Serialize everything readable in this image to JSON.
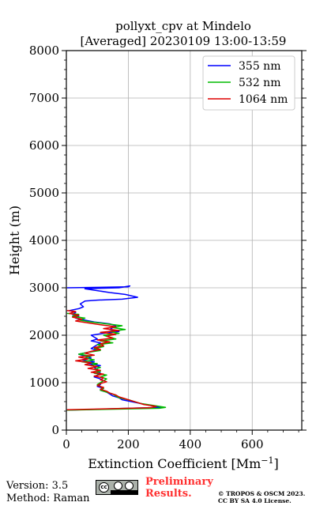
{
  "chart_data": {
    "type": "line",
    "title_line1": "pollyxt_cpv at Mindelo",
    "title_line2": "[Averaged] 20230109 13:00-13:59",
    "xlabel": "Extinction Coefficient [Mm",
    "xlabel_sup": "−1",
    "xlabel_end": "]",
    "ylabel": "Height (m)",
    "xlim": [
      0,
      760
    ],
    "ylim": [
      0,
      8000
    ],
    "xticks": [
      "0",
      "200",
      "400",
      "600"
    ],
    "yticks": [
      "0",
      "1000",
      "2000",
      "3000",
      "4000",
      "5000",
      "6000",
      "7000",
      "8000"
    ],
    "grid": true,
    "legend_position": "top-right",
    "series": [
      {
        "name": "355 nm",
        "color": "#0000ff",
        "points": [
          [
            2,
            3000
          ],
          [
            200,
            3020
          ],
          [
            205,
            3040
          ],
          [
            170,
            3000
          ],
          [
            60,
            2980
          ],
          [
            100,
            2940
          ],
          [
            140,
            2900
          ],
          [
            190,
            2860
          ],
          [
            230,
            2800
          ],
          [
            180,
            2760
          ],
          [
            100,
            2740
          ],
          [
            60,
            2720
          ],
          [
            45,
            2660
          ],
          [
            55,
            2600
          ],
          [
            40,
            2560
          ],
          [
            10,
            2520
          ],
          [
            30,
            2480
          ],
          [
            20,
            2440
          ],
          [
            40,
            2400
          ],
          [
            30,
            2360
          ],
          [
            60,
            2320
          ],
          [
            90,
            2280
          ],
          [
            140,
            2240
          ],
          [
            160,
            2200
          ],
          [
            150,
            2160
          ],
          [
            140,
            2120
          ],
          [
            170,
            2080
          ],
          [
            120,
            2040
          ],
          [
            80,
            2000
          ],
          [
            90,
            1960
          ],
          [
            100,
            1920
          ],
          [
            80,
            1880
          ],
          [
            110,
            1840
          ],
          [
            100,
            1800
          ],
          [
            90,
            1760
          ],
          [
            80,
            1720
          ],
          [
            100,
            1680
          ],
          [
            70,
            1640
          ],
          [
            40,
            1600
          ],
          [
            60,
            1560
          ],
          [
            80,
            1520
          ],
          [
            50,
            1480
          ],
          [
            90,
            1440
          ],
          [
            70,
            1400
          ],
          [
            110,
            1360
          ],
          [
            90,
            1320
          ],
          [
            100,
            1280
          ],
          [
            100,
            1240
          ],
          [
            110,
            1200
          ],
          [
            100,
            1160
          ],
          [
            90,
            1120
          ],
          [
            110,
            1080
          ],
          [
            120,
            1040
          ],
          [
            110,
            1000
          ],
          [
            110,
            960
          ],
          [
            100,
            920
          ],
          [
            120,
            880
          ],
          [
            110,
            840
          ],
          [
            130,
            800
          ],
          [
            140,
            760
          ],
          [
            150,
            720
          ],
          [
            170,
            680
          ],
          [
            180,
            640
          ],
          [
            210,
            600
          ],
          [
            240,
            560
          ],
          [
            270,
            520
          ],
          [
            310,
            480
          ],
          [
            200,
            460
          ],
          [
            2,
            420
          ]
        ]
      },
      {
        "name": "532 nm",
        "color": "#00bb00",
        "points": [
          [
            2,
            2460
          ],
          [
            40,
            2440
          ],
          [
            20,
            2400
          ],
          [
            60,
            2360
          ],
          [
            40,
            2320
          ],
          [
            80,
            2280
          ],
          [
            130,
            2240
          ],
          [
            180,
            2200
          ],
          [
            150,
            2160
          ],
          [
            190,
            2120
          ],
          [
            140,
            2080
          ],
          [
            170,
            2040
          ],
          [
            120,
            2000
          ],
          [
            140,
            1960
          ],
          [
            160,
            1920
          ],
          [
            110,
            1880
          ],
          [
            150,
            1840
          ],
          [
            100,
            1800
          ],
          [
            120,
            1760
          ],
          [
            90,
            1720
          ],
          [
            110,
            1680
          ],
          [
            70,
            1640
          ],
          [
            40,
            1600
          ],
          [
            80,
            1560
          ],
          [
            60,
            1520
          ],
          [
            90,
            1480
          ],
          [
            50,
            1440
          ],
          [
            100,
            1400
          ],
          [
            80,
            1360
          ],
          [
            110,
            1320
          ],
          [
            90,
            1280
          ],
          [
            110,
            1240
          ],
          [
            90,
            1200
          ],
          [
            130,
            1160
          ],
          [
            110,
            1120
          ],
          [
            130,
            1080
          ],
          [
            120,
            1040
          ],
          [
            110,
            1000
          ],
          [
            100,
            960
          ],
          [
            110,
            920
          ],
          [
            120,
            880
          ],
          [
            110,
            840
          ],
          [
            130,
            800
          ],
          [
            150,
            760
          ],
          [
            160,
            720
          ],
          [
            170,
            680
          ],
          [
            200,
            640
          ],
          [
            220,
            600
          ],
          [
            240,
            560
          ],
          [
            280,
            520
          ],
          [
            320,
            480
          ],
          [
            300,
            460
          ],
          [
            2,
            420
          ]
        ]
      },
      {
        "name": "1064 nm",
        "color": "#dd0000",
        "points": [
          [
            2,
            2520
          ],
          [
            30,
            2500
          ],
          [
            10,
            2460
          ],
          [
            40,
            2420
          ],
          [
            20,
            2380
          ],
          [
            50,
            2340
          ],
          [
            30,
            2300
          ],
          [
            70,
            2260
          ],
          [
            110,
            2220
          ],
          [
            160,
            2180
          ],
          [
            120,
            2140
          ],
          [
            170,
            2100
          ],
          [
            110,
            2060
          ],
          [
            160,
            2020
          ],
          [
            130,
            1980
          ],
          [
            150,
            1940
          ],
          [
            100,
            1900
          ],
          [
            140,
            1860
          ],
          [
            110,
            1820
          ],
          [
            120,
            1780
          ],
          [
            90,
            1740
          ],
          [
            110,
            1700
          ],
          [
            80,
            1660
          ],
          [
            60,
            1620
          ],
          [
            90,
            1580
          ],
          [
            40,
            1540
          ],
          [
            70,
            1500
          ],
          [
            30,
            1460
          ],
          [
            80,
            1420
          ],
          [
            60,
            1380
          ],
          [
            100,
            1340
          ],
          [
            70,
            1300
          ],
          [
            110,
            1260
          ],
          [
            80,
            1220
          ],
          [
            120,
            1180
          ],
          [
            90,
            1140
          ],
          [
            120,
            1100
          ],
          [
            110,
            1060
          ],
          [
            130,
            1020
          ],
          [
            110,
            980
          ],
          [
            100,
            940
          ],
          [
            120,
            900
          ],
          [
            110,
            860
          ],
          [
            130,
            820
          ],
          [
            140,
            780
          ],
          [
            160,
            740
          ],
          [
            170,
            700
          ],
          [
            190,
            660
          ],
          [
            210,
            620
          ],
          [
            230,
            580
          ],
          [
            250,
            540
          ],
          [
            290,
            500
          ],
          [
            270,
            470
          ],
          [
            2,
            430
          ]
        ]
      }
    ]
  },
  "footer": {
    "version": "Version: 3.5",
    "method": "Method: Raman",
    "preliminary_line1": "Preliminary",
    "preliminary_line2": "Results.",
    "copyright_line1": "© TROPOS & OSCM 2023.",
    "copyright_line2": "CC BY SA 4.0 License."
  }
}
